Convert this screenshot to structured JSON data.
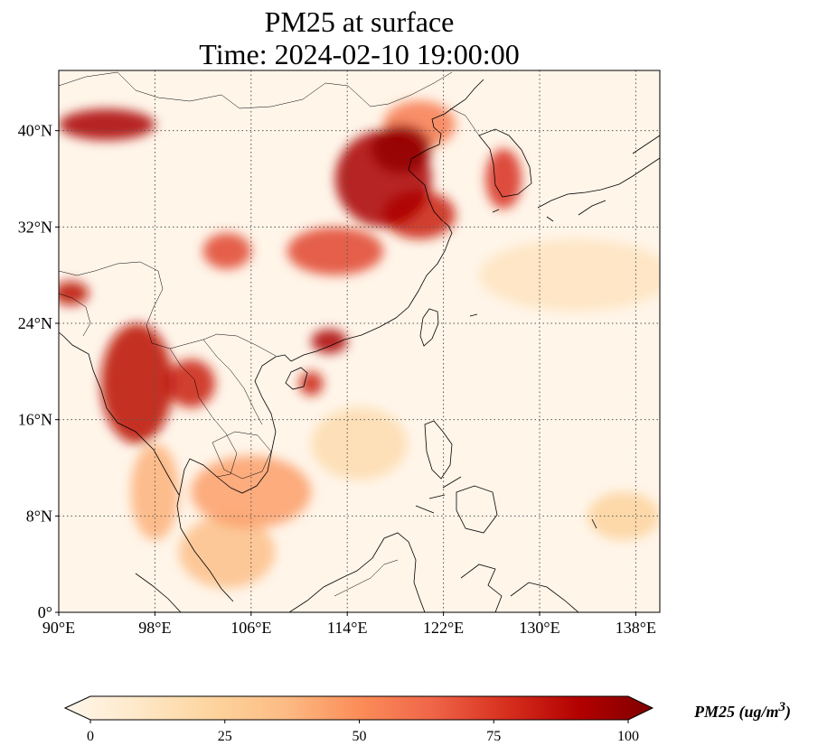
{
  "title": {
    "line1": "PM25 at surface",
    "line2": "Time: 2024-02-10 19:00:00"
  },
  "map": {
    "lon_range": [
      90,
      140
    ],
    "lat_range": [
      0,
      45
    ],
    "lon_ticks": [
      90,
      98,
      106,
      114,
      122,
      130,
      138
    ],
    "lat_ticks": [
      0,
      8,
      16,
      24,
      32,
      40
    ],
    "lon_tick_labels": [
      "90°E",
      "98°E",
      "106°E",
      "114°E",
      "122°E",
      "130°E",
      "138°E"
    ],
    "lat_tick_labels": [
      "0°",
      "8°N",
      "16°N",
      "24°N",
      "32°N",
      "40°N"
    ],
    "gridlines": true,
    "colormap": "OrRd",
    "hotspots": [
      {
        "lon": 117,
        "lat": 36,
        "rx": 4,
        "ry": 4,
        "value": 90
      },
      {
        "lon": 118.5,
        "lat": 38.5,
        "rx": 2.5,
        "ry": 2,
        "value": 95
      },
      {
        "lon": 120,
        "lat": 33,
        "rx": 3,
        "ry": 2,
        "value": 80
      },
      {
        "lon": 113,
        "lat": 30,
        "rx": 4,
        "ry": 2,
        "value": 70
      },
      {
        "lon": 104,
        "lat": 30,
        "rx": 2,
        "ry": 1.5,
        "value": 70
      },
      {
        "lon": 112.5,
        "lat": 22.5,
        "rx": 1.5,
        "ry": 1,
        "value": 90
      },
      {
        "lon": 111,
        "lat": 19,
        "rx": 1,
        "ry": 1,
        "value": 80
      },
      {
        "lon": 96.5,
        "lat": 19,
        "rx": 3,
        "ry": 5,
        "value": 85
      },
      {
        "lon": 101,
        "lat": 19,
        "rx": 2,
        "ry": 2,
        "value": 80
      },
      {
        "lon": 94,
        "lat": 40.5,
        "rx": 4,
        "ry": 1.3,
        "value": 90
      },
      {
        "lon": 91,
        "lat": 26.5,
        "rx": 1.5,
        "ry": 1,
        "value": 85
      },
      {
        "lon": 127,
        "lat": 36,
        "rx": 1.5,
        "ry": 2.5,
        "value": 75
      },
      {
        "lon": 106,
        "lat": 10,
        "rx": 5,
        "ry": 3,
        "value": 45
      },
      {
        "lon": 104,
        "lat": 5,
        "rx": 4,
        "ry": 3,
        "value": 35
      },
      {
        "lon": 98,
        "lat": 10,
        "rx": 2,
        "ry": 4,
        "value": 40
      },
      {
        "lon": 120,
        "lat": 40.5,
        "rx": 3,
        "ry": 2,
        "value": 55
      },
      {
        "lon": 133,
        "lat": 28,
        "rx": 8,
        "ry": 3,
        "value": 15
      },
      {
        "lon": 137,
        "lat": 8,
        "rx": 3,
        "ry": 2,
        "value": 25
      },
      {
        "lon": 115,
        "lat": 14,
        "rx": 4,
        "ry": 3,
        "value": 20
      }
    ]
  },
  "colorbar": {
    "min": 0,
    "max": 100,
    "ticks": [
      0,
      25,
      50,
      75,
      100
    ],
    "tick_labels": [
      "0",
      "25",
      "50",
      "75",
      "100"
    ],
    "label": "PM25 (ug/m",
    "label_sup": "3",
    "label_end": ")",
    "colors": [
      "#fff7ec",
      "#fee8c8",
      "#fdd49e",
      "#fdbb84",
      "#fc8d59",
      "#ef6548",
      "#d7301f",
      "#b30000",
      "#7f0000"
    ]
  }
}
